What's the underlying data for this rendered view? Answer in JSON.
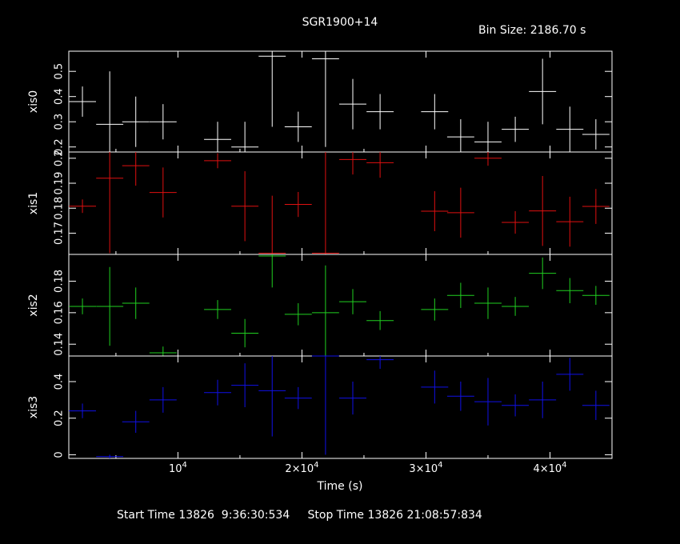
{
  "header": {
    "title": "SGR1900+14",
    "bin_size_label": "Bin Size:",
    "bin_size_value": "2186.70",
    "bin_size_unit": "s"
  },
  "footer": {
    "start_label": "Start Time",
    "start_value": "13826  9:36:30:534",
    "stop_label": "Stop Time",
    "stop_value": "13826 21:08:57:834"
  },
  "chart_data": {
    "type": "scatter",
    "xlabel": "Time (s)",
    "xlim": [
      1200,
      45000
    ],
    "x_tick_labels": [
      "10^4",
      "2×10^4",
      "3×10^4",
      "4×10^4"
    ],
    "x_tick_values": [
      10000,
      20000,
      30000,
      40000
    ],
    "panels": [
      {
        "ylabel": "xis0",
        "color": "#ffffff",
        "ylim": [
          0.18,
          0.58
        ],
        "ticks": [
          0.2,
          0.3,
          0.4,
          0.5
        ],
        "tick_labels": [
          "0.2",
          "0.3",
          "0.4",
          "0.5"
        ],
        "points": [
          {
            "x": 2300,
            "y": 0.38,
            "yerr": 0.06
          },
          {
            "x": 4500,
            "y": 0.29,
            "yerr": 0.21
          },
          {
            "x": 6600,
            "y": 0.3,
            "yerr": 0.1
          },
          {
            "x": 8800,
            "y": 0.3,
            "yerr": 0.07
          },
          {
            "x": 13200,
            "y": 0.23,
            "yerr": 0.07
          },
          {
            "x": 15400,
            "y": 0.2,
            "yerr": 0.1
          },
          {
            "x": 17600,
            "y": 0.56,
            "yerr": 0.28
          },
          {
            "x": 19700,
            "y": 0.28,
            "yerr": 0.06
          },
          {
            "x": 21900,
            "y": 0.55,
            "yerr": 0.35
          },
          {
            "x": 24100,
            "y": 0.37,
            "yerr": 0.1
          },
          {
            "x": 26300,
            "y": 0.34,
            "yerr": 0.07
          },
          {
            "x": 30700,
            "y": 0.34,
            "yerr": 0.07
          },
          {
            "x": 32800,
            "y": 0.24,
            "yerr": 0.07
          },
          {
            "x": 35000,
            "y": 0.22,
            "yerr": 0.08
          },
          {
            "x": 37200,
            "y": 0.27,
            "yerr": 0.05
          },
          {
            "x": 39400,
            "y": 0.42,
            "yerr": 0.13
          },
          {
            "x": 41600,
            "y": 0.27,
            "yerr": 0.09
          },
          {
            "x": 43700,
            "y": 0.25,
            "yerr": 0.06
          }
        ]
      },
      {
        "ylabel": "xis1",
        "color": "#e01010",
        "ylim": [
          0.1615,
          0.2025
        ],
        "ticks": [
          0.17,
          0.18,
          0.19,
          0.2
        ],
        "tick_labels": [
          "0.17",
          "0.18",
          "0.19",
          "0.2"
        ],
        "points": [
          {
            "x": 2300,
            "y": 0.1808,
            "yerr": 0.0027
          },
          {
            "x": 4500,
            "y": 0.192,
            "yerr": 0.03
          },
          {
            "x": 6600,
            "y": 0.197,
            "yerr": 0.008
          },
          {
            "x": 8800,
            "y": 0.1863,
            "yerr": 0.01
          },
          {
            "x": 13200,
            "y": 0.199,
            "yerr": 0.003
          },
          {
            "x": 15400,
            "y": 0.1808,
            "yerr": 0.014
          },
          {
            "x": 17600,
            "y": 0.162,
            "yerr": 0.023
          },
          {
            "x": 19700,
            "y": 0.1815,
            "yerr": 0.005
          },
          {
            "x": 21900,
            "y": 0.162,
            "yerr": 0.041
          },
          {
            "x": 24100,
            "y": 0.1995,
            "yerr": 0.006
          },
          {
            "x": 26300,
            "y": 0.1982,
            "yerr": 0.006
          },
          {
            "x": 30700,
            "y": 0.1788,
            "yerr": 0.008
          },
          {
            "x": 32800,
            "y": 0.1782,
            "yerr": 0.01
          },
          {
            "x": 35000,
            "y": 0.2,
            "yerr": 0.003
          },
          {
            "x": 37200,
            "y": 0.1743,
            "yerr": 0.0045
          },
          {
            "x": 39400,
            "y": 0.1789,
            "yerr": 0.014
          },
          {
            "x": 41600,
            "y": 0.1746,
            "yerr": 0.01
          },
          {
            "x": 43700,
            "y": 0.1807,
            "yerr": 0.007
          }
        ]
      },
      {
        "ylabel": "xis2",
        "color": "#20d020",
        "ylim": [
          0.1325,
          0.197
        ],
        "ticks": [
          0.14,
          0.16,
          0.18
        ],
        "tick_labels": [
          "0.14",
          "0.16",
          "0.18"
        ],
        "points": [
          {
            "x": 2300,
            "y": 0.164,
            "yerr": 0.005
          },
          {
            "x": 4500,
            "y": 0.164,
            "yerr": 0.025
          },
          {
            "x": 6600,
            "y": 0.166,
            "yerr": 0.01
          },
          {
            "x": 8800,
            "y": 0.1345,
            "yerr": 0.004
          },
          {
            "x": 13200,
            "y": 0.162,
            "yerr": 0.006
          },
          {
            "x": 15400,
            "y": 0.147,
            "yerr": 0.009
          },
          {
            "x": 17600,
            "y": 0.196,
            "yerr": 0.02
          },
          {
            "x": 19700,
            "y": 0.159,
            "yerr": 0.007
          },
          {
            "x": 21900,
            "y": 0.16,
            "yerr": 0.03
          },
          {
            "x": 24100,
            "y": 0.167,
            "yerr": 0.008
          },
          {
            "x": 26300,
            "y": 0.155,
            "yerr": 0.006
          },
          {
            "x": 30700,
            "y": 0.162,
            "yerr": 0.007
          },
          {
            "x": 32800,
            "y": 0.171,
            "yerr": 0.008
          },
          {
            "x": 35000,
            "y": 0.166,
            "yerr": 0.01
          },
          {
            "x": 37200,
            "y": 0.164,
            "yerr": 0.006
          },
          {
            "x": 39400,
            "y": 0.185,
            "yerr": 0.01
          },
          {
            "x": 41600,
            "y": 0.174,
            "yerr": 0.008
          },
          {
            "x": 43700,
            "y": 0.171,
            "yerr": 0.006
          }
        ]
      },
      {
        "ylabel": "xis3",
        "color": "#1010e8",
        "ylim": [
          -0.02,
          0.54
        ],
        "ticks": [
          0,
          0.2,
          0.4
        ],
        "tick_labels": [
          "0",
          "0.2",
          "0.4"
        ],
        "points": [
          {
            "x": 2300,
            "y": 0.24,
            "yerr": 0.04
          },
          {
            "x": 4500,
            "y": -0.01,
            "yerr": 0.01
          },
          {
            "x": 6600,
            "y": 0.18,
            "yerr": 0.06
          },
          {
            "x": 8800,
            "y": 0.3,
            "yerr": 0.07
          },
          {
            "x": 13200,
            "y": 0.34,
            "yerr": 0.07
          },
          {
            "x": 15400,
            "y": 0.38,
            "yerr": 0.12
          },
          {
            "x": 17600,
            "y": 0.35,
            "yerr": 0.25
          },
          {
            "x": 19700,
            "y": 0.31,
            "yerr": 0.06
          },
          {
            "x": 21900,
            "y": 0.54,
            "yerr": 0.54
          },
          {
            "x": 24100,
            "y": 0.31,
            "yerr": 0.09
          },
          {
            "x": 26300,
            "y": 0.52,
            "yerr": 0.05
          },
          {
            "x": 30700,
            "y": 0.37,
            "yerr": 0.09
          },
          {
            "x": 32800,
            "y": 0.32,
            "yerr": 0.08
          },
          {
            "x": 35000,
            "y": 0.29,
            "yerr": 0.13
          },
          {
            "x": 37200,
            "y": 0.27,
            "yerr": 0.06
          },
          {
            "x": 39400,
            "y": 0.3,
            "yerr": 0.1
          },
          {
            "x": 41600,
            "y": 0.44,
            "yerr": 0.09
          },
          {
            "x": 43700,
            "y": 0.27,
            "yerr": 0.08
          }
        ]
      }
    ]
  }
}
